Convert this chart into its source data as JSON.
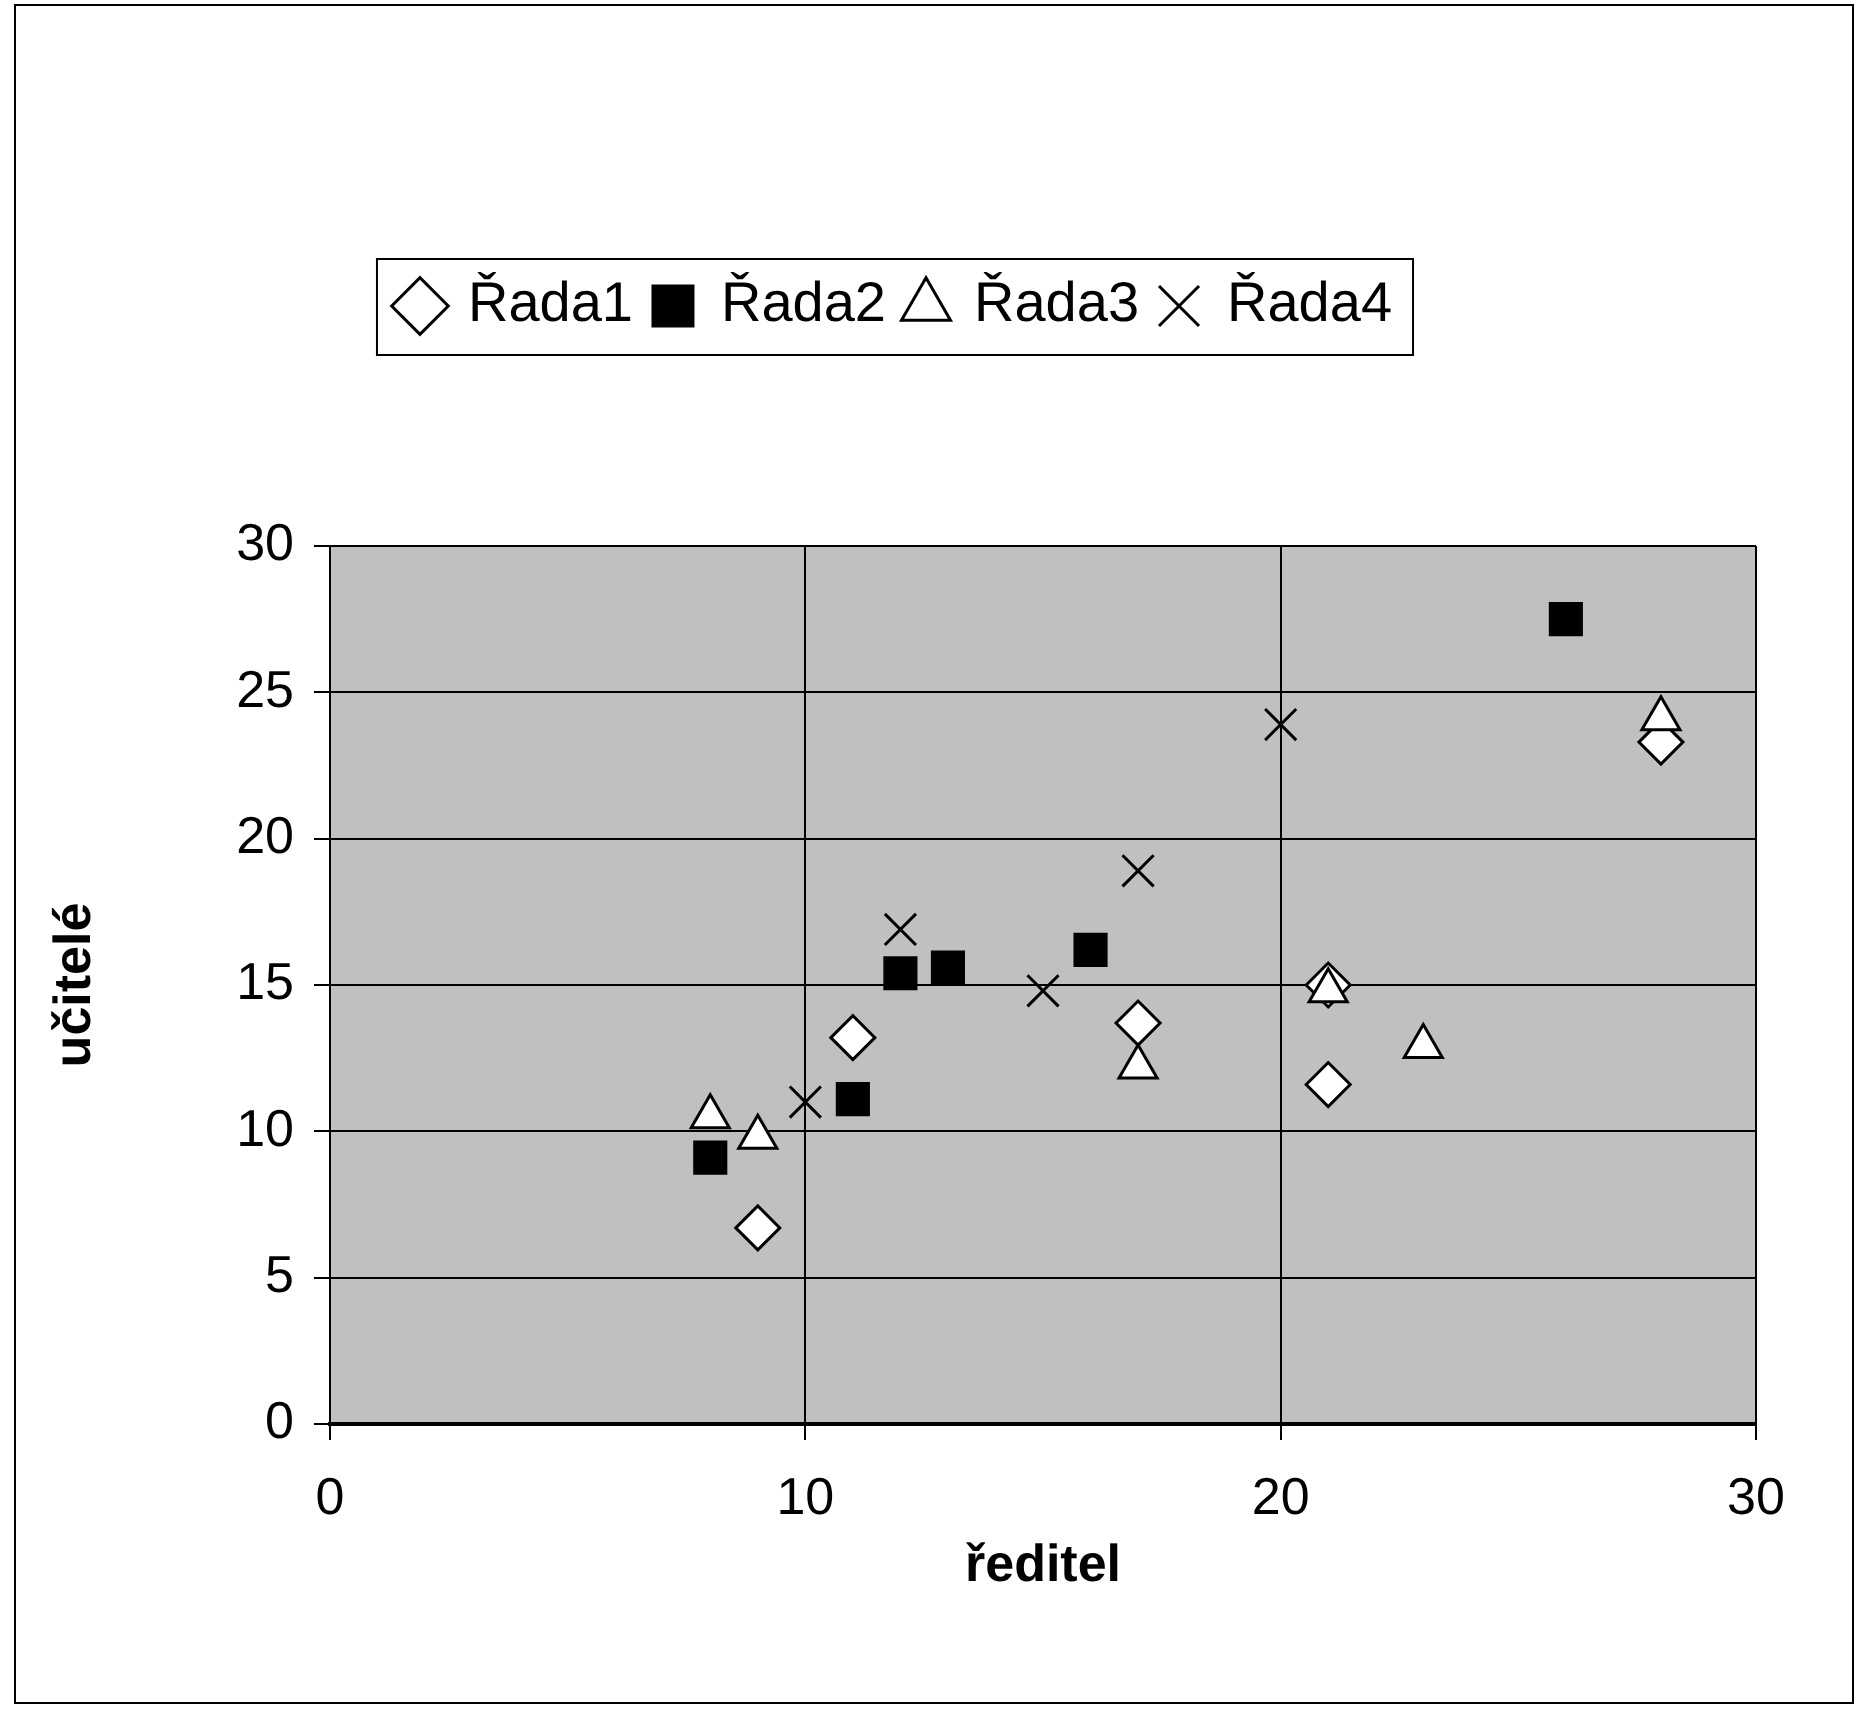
{
  "chart_data": {
    "type": "scatter",
    "xlabel": "ředitel",
    "ylabel": "učitelé",
    "xlim": [
      0,
      30
    ],
    "xticks": [
      0,
      10,
      20,
      30
    ],
    "ylim": [
      0,
      30
    ],
    "yticks": [
      0,
      5,
      10,
      15,
      20,
      25,
      30
    ],
    "grid": true,
    "legend": "top",
    "series": [
      {
        "name": "Řada1",
        "color": "#ffffff",
        "marker": "diamond",
        "x": [
          9,
          11,
          17,
          21,
          21,
          28
        ],
        "values": [
          6.7,
          13.2,
          13.7,
          15.0,
          11.6,
          23.3
        ]
      },
      {
        "name": "Řada2",
        "color": "#000000",
        "marker": "square",
        "x": [
          8,
          11,
          12,
          13,
          16,
          26
        ],
        "values": [
          9.1,
          11.1,
          15.4,
          15.6,
          16.2,
          27.5
        ]
      },
      {
        "name": "Řada3",
        "color": "#ffffff",
        "marker": "triangle",
        "x": [
          8,
          9,
          17,
          21,
          23,
          28
        ],
        "values": [
          10.5,
          9.8,
          12.2,
          14.8,
          12.9,
          24.1
        ]
      },
      {
        "name": "Řada4",
        "color": "#000000",
        "marker": "cross",
        "x": [
          10,
          12,
          15,
          17,
          20
        ],
        "values": [
          11.0,
          16.9,
          14.8,
          18.9,
          23.9
        ]
      }
    ]
  }
}
